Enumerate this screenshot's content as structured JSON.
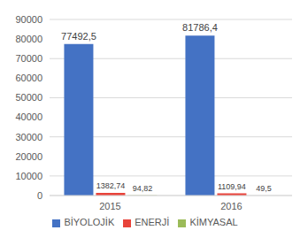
{
  "chart_data": {
    "type": "bar",
    "categories": [
      "2015",
      "2016"
    ],
    "series": [
      {
        "name": "BİYOLOJİK",
        "color": "#4472c4",
        "values": [
          77492.5,
          81786.4
        ],
        "value_labels": [
          "77492,5",
          "81786,4"
        ]
      },
      {
        "name": "ENERJİ",
        "color": "#e8433a",
        "values": [
          1382.74,
          1109.94
        ],
        "value_labels": [
          "1382,74",
          "1109,94"
        ]
      },
      {
        "name": "KİMYASAL",
        "color": "#9bbb59",
        "values": [
          94.82,
          49.5
        ],
        "value_labels": [
          "94,82",
          "49,5"
        ]
      }
    ],
    "ylim": [
      0,
      90000
    ],
    "yticks": [
      0,
      10000,
      20000,
      30000,
      40000,
      50000,
      60000,
      70000,
      80000,
      90000
    ],
    "grid": true,
    "legend": "bottom",
    "data_labels": true
  }
}
